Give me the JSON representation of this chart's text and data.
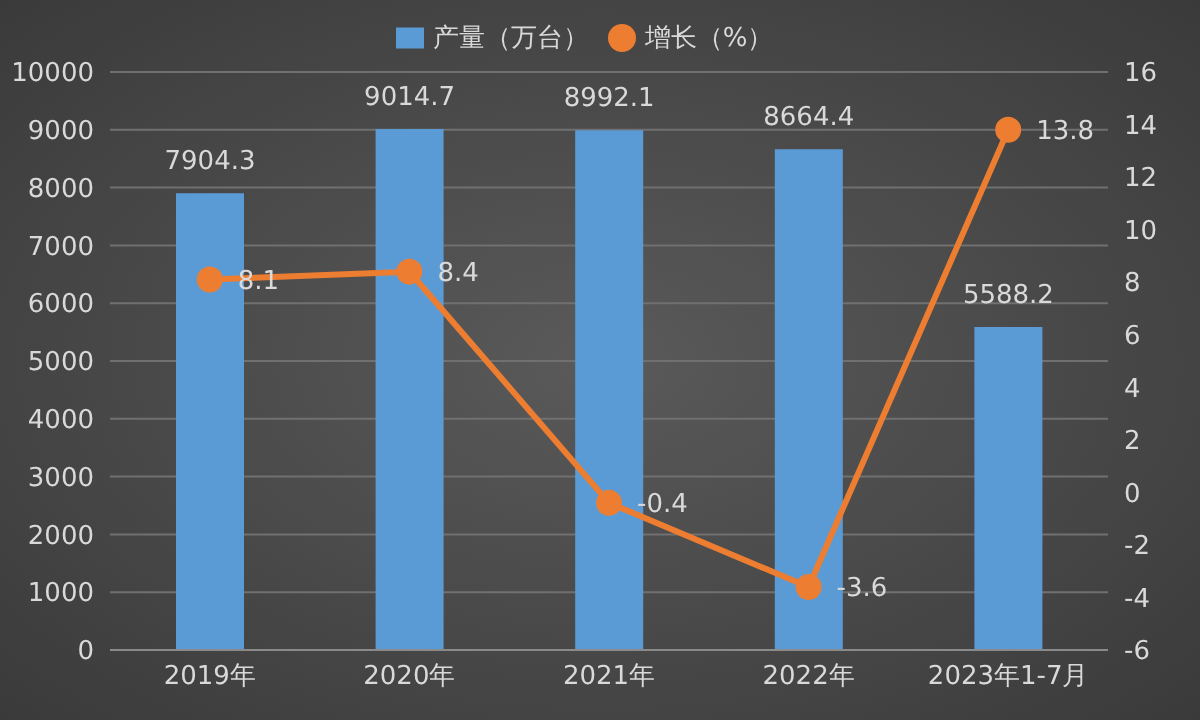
{
  "chart_data": {
    "type": "bar",
    "categories": [
      "2019年",
      "2020年",
      "2021年",
      "2022年",
      "2023年1-7月"
    ],
    "series": [
      {
        "name": "产量（万台）",
        "color": "#5b9bd5",
        "values": [
          7904.3,
          9014.7,
          8992.1,
          8664.4,
          5588.2
        ]
      },
      {
        "name": "增长（%）",
        "type": "line",
        "axis": "y2",
        "color": "#ed7d31",
        "values": [
          8.1,
          8.4,
          -0.4,
          -3.6,
          13.8
        ]
      }
    ],
    "ylim": [
      0,
      10000
    ],
    "yticks": [
      0,
      1000,
      2000,
      3000,
      4000,
      5000,
      6000,
      7000,
      8000,
      9000,
      10000
    ],
    "y2lim": [
      -6,
      16
    ],
    "y2ticks": [
      -6,
      -4,
      -2,
      0,
      2,
      4,
      6,
      8,
      10,
      12,
      14,
      16
    ],
    "grid": "y",
    "legend": "top",
    "marker": "circle",
    "data_labels": true
  }
}
